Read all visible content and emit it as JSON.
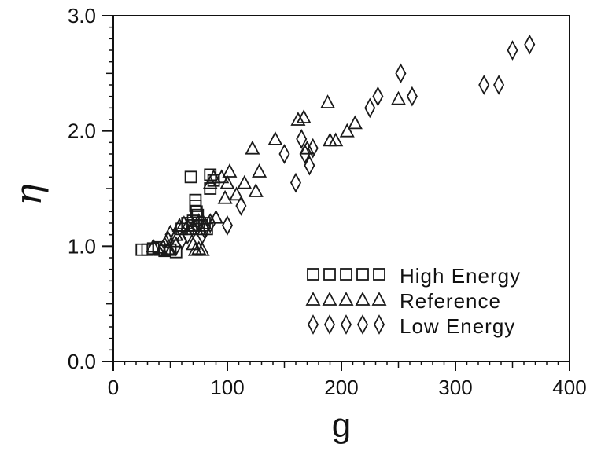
{
  "chart_data": {
    "type": "scatter",
    "xlabel": "g",
    "ylabel": "η",
    "xlim": [
      0,
      400
    ],
    "ylim": [
      0,
      3.0
    ],
    "x_ticks": [
      "0",
      "100",
      "200",
      "300",
      "400"
    ],
    "y_ticks": [
      "0.0",
      "1.0",
      "2.0",
      "3.0"
    ],
    "grid": false,
    "legend_position": "bottom-right",
    "series": [
      {
        "name": "High Energy",
        "marker": "square",
        "points": [
          [
            25,
            0.97
          ],
          [
            30,
            0.97
          ],
          [
            35,
            0.98
          ],
          [
            40,
            0.99
          ],
          [
            45,
            0.96
          ],
          [
            50,
            0.97
          ],
          [
            55,
            0.95
          ],
          [
            60,
            1.15
          ],
          [
            65,
            1.2
          ],
          [
            68,
            1.6
          ],
          [
            70,
            1.22
          ],
          [
            70,
            1.18
          ],
          [
            72,
            1.4
          ],
          [
            72,
            1.35
          ],
          [
            73,
            1.3
          ],
          [
            74,
            1.27
          ],
          [
            75,
            1.15
          ],
          [
            78,
            1.18
          ],
          [
            80,
            1.2
          ],
          [
            82,
            1.15
          ],
          [
            85,
            1.5
          ],
          [
            85,
            1.62
          ],
          [
            88,
            1.57
          ]
        ]
      },
      {
        "name": "Reference",
        "marker": "triangle",
        "points": [
          [
            35,
            1.0
          ],
          [
            42,
            0.97
          ],
          [
            48,
            0.98
          ],
          [
            55,
            1.1
          ],
          [
            58,
            1.18
          ],
          [
            62,
            1.2
          ],
          [
            65,
            1.18
          ],
          [
            68,
            1.15
          ],
          [
            70,
            1.02
          ],
          [
            72,
            0.97
          ],
          [
            75,
            0.98
          ],
          [
            78,
            0.97
          ],
          [
            80,
            1.2
          ],
          [
            85,
            1.55
          ],
          [
            88,
            1.6
          ],
          [
            90,
            1.25
          ],
          [
            95,
            1.6
          ],
          [
            98,
            1.42
          ],
          [
            100,
            1.55
          ],
          [
            102,
            1.65
          ],
          [
            108,
            1.45
          ],
          [
            115,
            1.55
          ],
          [
            122,
            1.85
          ],
          [
            125,
            1.48
          ],
          [
            128,
            1.65
          ],
          [
            142,
            1.93
          ],
          [
            162,
            2.1
          ],
          [
            167,
            2.12
          ],
          [
            170,
            1.85
          ],
          [
            188,
            2.25
          ],
          [
            190,
            1.92
          ],
          [
            195,
            1.92
          ],
          [
            205,
            2.0
          ],
          [
            212,
            2.07
          ],
          [
            250,
            2.28
          ]
        ]
      },
      {
        "name": "Low Energy",
        "marker": "diamond",
        "points": [
          [
            45,
            1.0
          ],
          [
            48,
            1.05
          ],
          [
            50,
            1.1
          ],
          [
            55,
            1.0
          ],
          [
            60,
            1.05
          ],
          [
            65,
            1.1
          ],
          [
            70,
            1.15
          ],
          [
            75,
            1.2
          ],
          [
            78,
            1.1
          ],
          [
            80,
            1.15
          ],
          [
            85,
            1.2
          ],
          [
            100,
            1.18
          ],
          [
            112,
            1.35
          ],
          [
            150,
            1.8
          ],
          [
            160,
            1.55
          ],
          [
            165,
            1.93
          ],
          [
            168,
            1.8
          ],
          [
            172,
            1.7
          ],
          [
            175,
            1.85
          ],
          [
            225,
            2.2
          ],
          [
            232,
            2.3
          ],
          [
            252,
            2.5
          ],
          [
            262,
            2.3
          ],
          [
            325,
            2.4
          ],
          [
            338,
            2.4
          ],
          [
            350,
            2.7
          ],
          [
            365,
            2.75
          ]
        ]
      }
    ],
    "legend": [
      {
        "symbols": "□□□□□",
        "label": "High Energy"
      },
      {
        "symbols": "△△△△△",
        "label": "Reference"
      },
      {
        "symbols": "◇◇◇◇◇",
        "label": "Low Energy"
      }
    ]
  }
}
